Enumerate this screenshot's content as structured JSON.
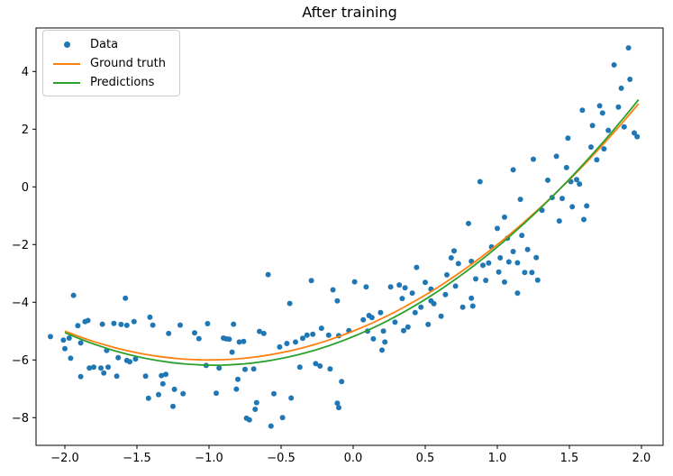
{
  "chart_data": {
    "type": "scatter",
    "title": "After training",
    "xlabel": "",
    "ylabel": "",
    "grid": false,
    "legend_position": "upper-left",
    "xlim": [
      -2.2,
      2.15
    ],
    "ylim": [
      -8.96,
      5.51
    ],
    "x_ticks": {
      "values": [
        -2.0,
        -1.5,
        -1.0,
        -0.5,
        0.0,
        0.5,
        1.0,
        1.5,
        2.0
      ],
      "labels": [
        "−2.0",
        "−1.5",
        "−1.0",
        "−0.5",
        "0.0",
        "0.5",
        "1.0",
        "1.5",
        "2.0"
      ]
    },
    "y_ticks": {
      "values": [
        4,
        2,
        0,
        -2,
        -4,
        -6,
        -8
      ],
      "labels": [
        "4",
        "2",
        "0",
        "−2",
        "−4",
        "−6",
        "−8"
      ]
    },
    "axis_color": "#000000",
    "series": [
      {
        "name": "Data",
        "type": "scatter",
        "color": "#1f77b4",
        "marker": "point",
        "points": [
          [
            -2.1,
            -5.19
          ],
          [
            -2.01,
            -5.31
          ],
          [
            -1.97,
            -5.24
          ],
          [
            -2.0,
            -5.61
          ],
          [
            -1.96,
            -5.94
          ],
          [
            -1.94,
            -3.76
          ],
          [
            -1.91,
            -4.81
          ],
          [
            -1.89,
            -5.41
          ],
          [
            -1.89,
            -6.58
          ],
          [
            -1.86,
            -4.67
          ],
          [
            -1.84,
            -4.63
          ],
          [
            -1.83,
            -6.28
          ],
          [
            -1.8,
            -6.25
          ],
          [
            -1.75,
            -6.28
          ],
          [
            -1.74,
            -4.76
          ],
          [
            -1.73,
            -6.45
          ],
          [
            -1.71,
            -5.67
          ],
          [
            -1.7,
            -6.25
          ],
          [
            -1.66,
            -4.73
          ],
          [
            -1.64,
            -6.56
          ],
          [
            -1.63,
            -5.92
          ],
          [
            -1.61,
            -4.77
          ],
          [
            -1.58,
            -3.86
          ],
          [
            -1.57,
            -4.8
          ],
          [
            -1.57,
            -6.02
          ],
          [
            -1.55,
            -6.06
          ],
          [
            -1.52,
            -4.67
          ],
          [
            -1.51,
            -5.97
          ],
          [
            -1.44,
            -6.56
          ],
          [
            -1.42,
            -7.33
          ],
          [
            -1.41,
            -4.52
          ],
          [
            -1.39,
            -4.79
          ],
          [
            -1.35,
            -7.2
          ],
          [
            -1.33,
            -6.54
          ],
          [
            -1.3,
            -6.5
          ],
          [
            -1.32,
            -6.83
          ],
          [
            -1.28,
            -5.08
          ],
          [
            -1.25,
            -7.61
          ],
          [
            -1.24,
            -7.02
          ],
          [
            -1.2,
            -4.79
          ],
          [
            -1.18,
            -7.17
          ],
          [
            -1.1,
            -5.06
          ],
          [
            -1.07,
            -5.26
          ],
          [
            -1.01,
            -4.74
          ],
          [
            -1.02,
            -6.19
          ],
          [
            -0.95,
            -7.15
          ],
          [
            -0.93,
            -6.28
          ],
          [
            -0.9,
            -5.24
          ],
          [
            -0.88,
            -5.27
          ],
          [
            -0.86,
            -5.28
          ],
          [
            -0.84,
            -5.73
          ],
          [
            -0.83,
            -4.76
          ],
          [
            -0.81,
            -7.01
          ],
          [
            -0.8,
            -6.67
          ],
          [
            -0.79,
            -5.38
          ],
          [
            -0.76,
            -5.36
          ],
          [
            -0.75,
            -6.33
          ],
          [
            -0.74,
            -8.02
          ],
          [
            -0.72,
            -8.08
          ],
          [
            -0.69,
            -6.31
          ],
          [
            -0.68,
            -7.71
          ],
          [
            -0.67,
            -7.48
          ],
          [
            -0.65,
            -5.01
          ],
          [
            -0.62,
            -5.08
          ],
          [
            -0.59,
            -3.04
          ],
          [
            -0.57,
            -8.29
          ],
          [
            -0.55,
            -7.17
          ],
          [
            -0.51,
            -5.55
          ],
          [
            -0.49,
            -8.0
          ],
          [
            -0.46,
            -5.43
          ],
          [
            -0.44,
            -4.04
          ],
          [
            -0.43,
            -7.32
          ],
          [
            -0.4,
            -5.38
          ],
          [
            -0.37,
            -6.25
          ],
          [
            -0.35,
            -5.25
          ],
          [
            -0.32,
            -5.14
          ],
          [
            -0.28,
            -5.11
          ],
          [
            -0.29,
            -3.25
          ],
          [
            -0.26,
            -6.13
          ],
          [
            -0.23,
            -6.21
          ],
          [
            -0.22,
            -4.9
          ],
          [
            -0.17,
            -5.14
          ],
          [
            -0.16,
            -6.31
          ],
          [
            -0.14,
            -3.57
          ],
          [
            -0.11,
            -3.95
          ],
          [
            -0.08,
            -6.75
          ],
          [
            -0.11,
            -7.5
          ],
          [
            -0.1,
            -7.65
          ],
          [
            -0.1,
            -5.16
          ],
          [
            -0.03,
            -4.98
          ],
          [
            0.01,
            -3.29
          ],
          [
            0.07,
            -4.61
          ],
          [
            0.09,
            -3.47
          ],
          [
            0.1,
            -5.0
          ],
          [
            0.11,
            -4.46
          ],
          [
            0.13,
            -4.53
          ],
          [
            0.14,
            -5.27
          ],
          [
            0.19,
            -4.36
          ],
          [
            0.2,
            -5.66
          ],
          [
            0.21,
            -5.0
          ],
          [
            0.22,
            -5.38
          ],
          [
            0.26,
            -3.47
          ],
          [
            0.29,
            -4.69
          ],
          [
            0.32,
            -3.4
          ],
          [
            0.34,
            -3.87
          ],
          [
            0.35,
            -4.98
          ],
          [
            0.36,
            -3.5
          ],
          [
            0.38,
            -4.86
          ],
          [
            0.41,
            -3.68
          ],
          [
            0.43,
            -4.36
          ],
          [
            0.44,
            -2.79
          ],
          [
            0.47,
            -4.17
          ],
          [
            0.5,
            -3.31
          ],
          [
            0.52,
            -4.77
          ],
          [
            0.54,
            -3.54
          ],
          [
            0.54,
            -3.95
          ],
          [
            0.56,
            -4.05
          ],
          [
            0.61,
            -4.48
          ],
          [
            0.64,
            -3.73
          ],
          [
            0.65,
            -3.05
          ],
          [
            0.68,
            -2.46
          ],
          [
            0.7,
            -2.22
          ],
          [
            0.71,
            -3.44
          ],
          [
            0.73,
            -2.66
          ],
          [
            0.76,
            -4.17
          ],
          [
            0.8,
            -1.27
          ],
          [
            0.82,
            -2.58
          ],
          [
            0.82,
            -3.86
          ],
          [
            0.83,
            -4.13
          ],
          [
            0.85,
            -3.19
          ],
          [
            0.88,
            0.18
          ],
          [
            0.9,
            -2.72
          ],
          [
            0.92,
            -3.24
          ],
          [
            0.94,
            -2.64
          ],
          [
            0.96,
            -2.08
          ],
          [
            1.0,
            -1.44
          ],
          [
            1.01,
            -2.95
          ],
          [
            1.02,
            -2.46
          ],
          [
            1.05,
            -1.05
          ],
          [
            1.05,
            -3.3
          ],
          [
            1.07,
            -1.78
          ],
          [
            1.08,
            -2.6
          ],
          [
            1.11,
            0.59
          ],
          [
            1.11,
            -2.24
          ],
          [
            1.14,
            -2.63
          ],
          [
            1.14,
            -3.68
          ],
          [
            1.16,
            -0.43
          ],
          [
            1.17,
            -1.68
          ],
          [
            1.19,
            -2.97
          ],
          [
            1.21,
            -2.17
          ],
          [
            1.24,
            -2.97
          ],
          [
            1.25,
            0.96
          ],
          [
            1.27,
            -2.45
          ],
          [
            1.28,
            -3.23
          ],
          [
            1.31,
            -0.81
          ],
          [
            1.35,
            0.23
          ],
          [
            1.38,
            -0.37
          ],
          [
            1.41,
            1.06
          ],
          [
            1.43,
            -1.18
          ],
          [
            1.45,
            -0.4
          ],
          [
            1.48,
            0.67
          ],
          [
            1.49,
            1.69
          ],
          [
            1.51,
            0.18
          ],
          [
            1.52,
            -0.69
          ],
          [
            1.55,
            0.25
          ],
          [
            1.57,
            0.1
          ],
          [
            1.6,
            -1.13
          ],
          [
            1.62,
            -0.66
          ],
          [
            1.65,
            1.38
          ],
          [
            1.69,
            0.94
          ],
          [
            1.74,
            1.32
          ],
          [
            1.59,
            2.66
          ],
          [
            1.66,
            2.13
          ],
          [
            1.71,
            2.81
          ],
          [
            1.73,
            2.56
          ],
          [
            1.77,
            1.96
          ],
          [
            1.81,
            4.23
          ],
          [
            1.84,
            2.77
          ],
          [
            1.86,
            3.42
          ],
          [
            1.88,
            2.08
          ],
          [
            1.91,
            4.82
          ],
          [
            1.92,
            3.73
          ],
          [
            1.95,
            1.87
          ],
          [
            1.97,
            1.74
          ]
        ]
      },
      {
        "name": "Ground truth",
        "type": "line",
        "color": "#ff7f0e",
        "model": "quadratic",
        "coefficients": {
          "a": 1.0,
          "b": 2.0,
          "c": -5.0
        },
        "x_range": [
          -2.0,
          1.98
        ]
      },
      {
        "name": "Predictions",
        "type": "line",
        "color": "#2ca02c",
        "model": "quadratic",
        "coefficients": {
          "a": 1.06,
          "b": 2.05,
          "c": -5.19
        },
        "x_range": [
          -2.0,
          1.98
        ]
      }
    ]
  }
}
